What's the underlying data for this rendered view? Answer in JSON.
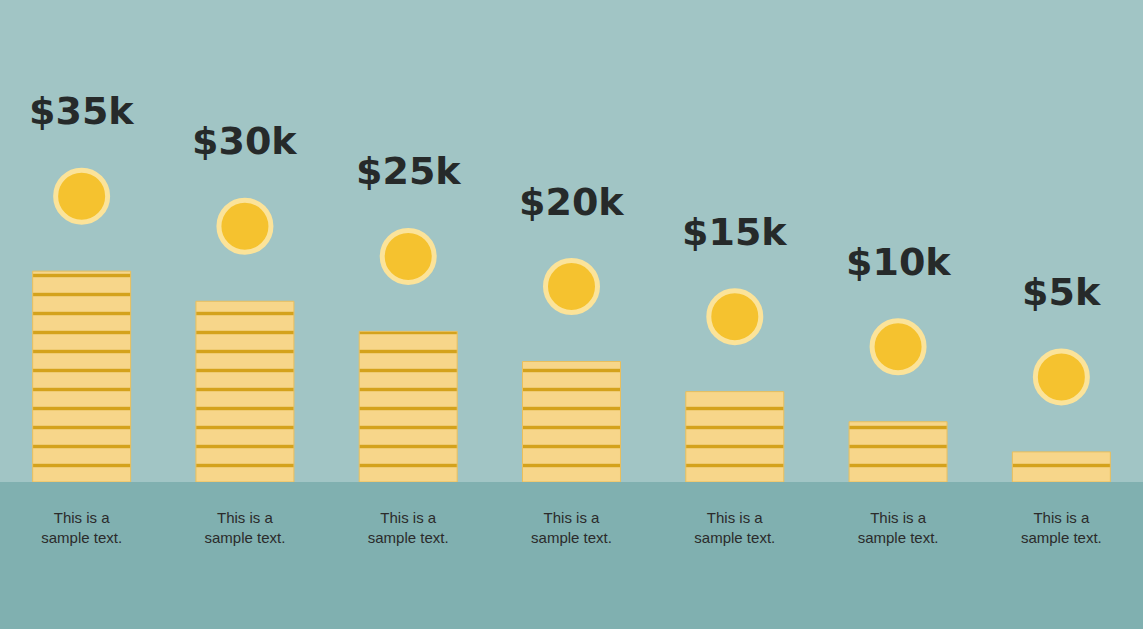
{
  "chart_data": {
    "type": "bar",
    "categories": [
      "This is a sample text.",
      "This is a sample text.",
      "This is a sample text.",
      "This is a sample text.",
      "This is a sample text.",
      "This is a sample text.",
      "This is a sample text."
    ],
    "values": [
      35,
      30,
      25,
      20,
      15,
      10,
      5
    ],
    "value_labels": [
      "$35k",
      "$30k",
      "$25k",
      "$20k",
      "$15k",
      "$10k",
      "$5k"
    ],
    "color": "#f7d68a",
    "ylim": [
      0,
      80
    ],
    "data_labels": true,
    "tick_labels": "x",
    "grid": false
  }
}
